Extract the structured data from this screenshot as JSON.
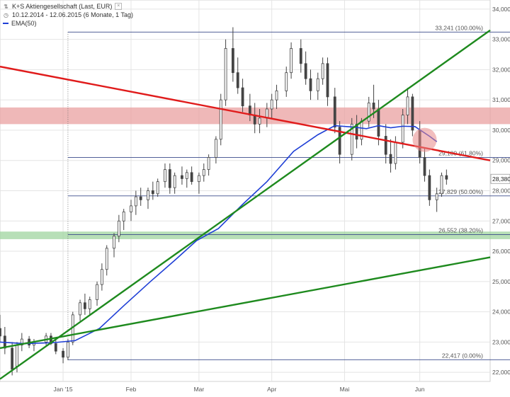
{
  "header": {
    "title": "K+S Aktiengesellschaft (Last, EUR)",
    "range": "10.12.2014 - 12.06.2015 (6 Monate, 1 Tag)",
    "indicator": "EMA(50)"
  },
  "colors": {
    "candle": "#444444",
    "ema": "#1f3fd6",
    "red_trend": "#e01b1b",
    "green_trend": "#1e8a1e",
    "resistance_zone": "#e9a0a0",
    "support_zone": "#9fd49f",
    "fib_line": "#3a4a8a",
    "grid": "#e4e4e4",
    "highlight_circle": "#e88888"
  },
  "chart_data": {
    "type": "candlestick",
    "ylim": [
      21700,
      34300
    ],
    "y_ticks": [
      "22,000",
      "23,000",
      "24,000",
      "25,000",
      "26,000",
      "27,000",
      "28,000",
      "29,000",
      "30,000",
      "31,000",
      "32,000",
      "33,000",
      "34,000"
    ],
    "y_tick_values": [
      22000,
      23000,
      24000,
      25000,
      26000,
      27000,
      28000,
      29000,
      30000,
      31000,
      32000,
      33000,
      34000
    ],
    "x_ticks": [
      {
        "label": "Jan '15",
        "date": "2015-01-05"
      },
      {
        "label": "Feb",
        "date": "2015-02-02"
      },
      {
        "label": "Mar",
        "date": "2015-03-02"
      },
      {
        "label": "Apr",
        "date": "2015-04-01"
      },
      {
        "label": "Mai",
        "date": "2015-05-01"
      },
      {
        "label": "Jun",
        "date": "2015-06-01"
      }
    ],
    "x_range": [
      "2014-12-10",
      "2015-06-30"
    ],
    "last_price_label": "28,380",
    "fib_levels": [
      {
        "label": "33,241 (100.00%)",
        "value": 33241
      },
      {
        "label": "29,100 (61.80%)",
        "value": 29100
      },
      {
        "label": "27,829 (50.00%)",
        "value": 27829
      },
      {
        "label": "26,552 (38.20%)",
        "value": 26552
      },
      {
        "label": "22,417 (0.00%)",
        "value": 22417
      }
    ],
    "fib_start_date": "2015-01-07",
    "zones": [
      {
        "name": "resistance",
        "low": 30200,
        "high": 30750
      },
      {
        "name": "support",
        "low": 26400,
        "high": 26650
      }
    ],
    "trendlines": [
      {
        "name": "red-downtrend",
        "color": "red",
        "points": [
          [
            "2014-12-10",
            32100
          ],
          [
            "2015-06-30",
            29000
          ]
        ]
      },
      {
        "name": "green-steep",
        "color": "green",
        "points": [
          [
            "2014-12-10",
            21780
          ],
          [
            "2015-06-30",
            33300
          ]
        ]
      },
      {
        "name": "green-shallow",
        "color": "green",
        "points": [
          [
            "2014-12-10",
            22800
          ],
          [
            "2015-06-30",
            25800
          ]
        ]
      }
    ],
    "highlight": {
      "date": "2015-06-03",
      "value": 29680
    },
    "ema": [
      [
        "2014-12-10",
        23000
      ],
      [
        "2014-12-20",
        22950
      ],
      [
        "2015-01-01",
        22980
      ],
      [
        "2015-01-10",
        23050
      ],
      [
        "2015-01-20",
        23450
      ],
      [
        "2015-01-30",
        24200
      ],
      [
        "2015-02-10",
        25000
      ],
      [
        "2015-02-20",
        25700
      ],
      [
        "2015-03-01",
        26350
      ],
      [
        "2015-03-10",
        26750
      ],
      [
        "2015-03-20",
        27550
      ],
      [
        "2015-03-30",
        28300
      ],
      [
        "2015-04-10",
        29300
      ],
      [
        "2015-04-20",
        29850
      ],
      [
        "2015-04-27",
        30150
      ],
      [
        "2015-05-05",
        30100
      ],
      [
        "2015-05-10",
        30050
      ],
      [
        "2015-05-15",
        30150
      ],
      [
        "2015-05-20",
        30080
      ],
      [
        "2015-05-25",
        30130
      ],
      [
        "2015-05-30",
        30120
      ],
      [
        "2015-06-05",
        29800
      ],
      [
        "2015-06-08",
        29620
      ]
    ],
    "candles": [
      [
        "2014-12-10",
        23450,
        23900,
        23000,
        23200
      ],
      [
        "2014-12-12",
        23200,
        23500,
        22600,
        22800
      ],
      [
        "2014-12-15",
        22800,
        23000,
        21900,
        22100
      ],
      [
        "2014-12-17",
        22200,
        23000,
        22000,
        22900
      ],
      [
        "2014-12-19",
        22900,
        23300,
        22700,
        23100
      ],
      [
        "2014-12-22",
        23100,
        23200,
        22800,
        22900
      ],
      [
        "2014-12-24",
        22900,
        23100,
        22700,
        23000
      ],
      [
        "2014-12-29",
        23000,
        23300,
        22900,
        23200
      ],
      [
        "2014-12-31",
        23200,
        23300,
        22900,
        22950
      ],
      [
        "2015-01-02",
        22950,
        23100,
        22600,
        22700
      ],
      [
        "2015-01-05",
        22700,
        22800,
        22300,
        22500
      ],
      [
        "2015-01-07",
        22500,
        23100,
        22400,
        23000
      ],
      [
        "2015-01-09",
        23000,
        24000,
        22900,
        23900
      ],
      [
        "2015-01-12",
        23900,
        24400,
        23700,
        24300
      ],
      [
        "2015-01-14",
        24300,
        24600,
        23900,
        24100
      ],
      [
        "2015-01-16",
        24100,
        24500,
        23900,
        24400
      ],
      [
        "2015-01-19",
        24400,
        25000,
        24200,
        24900
      ],
      [
        "2015-01-21",
        24900,
        25600,
        24700,
        25400
      ],
      [
        "2015-01-23",
        25400,
        26200,
        25200,
        26100
      ],
      [
        "2015-01-26",
        26100,
        26600,
        25800,
        26500
      ],
      [
        "2015-01-28",
        26500,
        27200,
        26300,
        27000
      ],
      [
        "2015-01-30",
        27000,
        27400,
        26700,
        27300
      ],
      [
        "2015-02-02",
        27300,
        27700,
        27000,
        27500
      ],
      [
        "2015-02-04",
        27500,
        28000,
        27200,
        27800
      ],
      [
        "2015-02-06",
        27800,
        28100,
        27500,
        27700
      ],
      [
        "2015-02-09",
        27700,
        28100,
        27400,
        28000
      ],
      [
        "2015-02-11",
        28000,
        28300,
        27700,
        27900
      ],
      [
        "2015-02-13",
        27900,
        28400,
        27800,
        28300
      ],
      [
        "2015-02-16",
        28300,
        28900,
        28100,
        28700
      ],
      [
        "2015-02-18",
        28700,
        28900,
        27900,
        28100
      ],
      [
        "2015-02-20",
        28100,
        28600,
        27900,
        28500
      ],
      [
        "2015-02-23",
        28500,
        28800,
        28200,
        28400
      ],
      [
        "2015-02-25",
        28400,
        28700,
        28100,
        28600
      ],
      [
        "2015-02-27",
        28600,
        28800,
        28200,
        28300
      ],
      [
        "2015-03-02",
        28300,
        28600,
        27900,
        28500
      ],
      [
        "2015-03-04",
        28500,
        28900,
        28300,
        28700
      ],
      [
        "2015-03-06",
        28700,
        29200,
        28500,
        29100
      ],
      [
        "2015-03-09",
        29100,
        29800,
        28900,
        29700
      ],
      [
        "2015-03-11",
        29700,
        31200,
        29500,
        31000
      ],
      [
        "2015-03-13",
        31000,
        33000,
        30800,
        32700
      ],
      [
        "2015-03-16",
        32700,
        33400,
        31600,
        31900
      ],
      [
        "2015-03-18",
        31900,
        32400,
        31200,
        31400
      ],
      [
        "2015-03-20",
        31400,
        31700,
        30600,
        30800
      ],
      [
        "2015-03-23",
        30800,
        31200,
        30300,
        30500
      ],
      [
        "2015-03-25",
        30500,
        30900,
        29900,
        30200
      ],
      [
        "2015-03-27",
        30200,
        30700,
        29900,
        30400
      ],
      [
        "2015-03-30",
        30400,
        30900,
        30100,
        30700
      ],
      [
        "2015-04-01",
        30700,
        31200,
        30400,
        31000
      ],
      [
        "2015-04-03",
        31000,
        31500,
        30700,
        31300
      ],
      [
        "2015-04-07",
        31300,
        32100,
        31100,
        31900
      ],
      [
        "2015-04-09",
        31900,
        32900,
        31700,
        32700
      ],
      [
        "2015-04-13",
        32700,
        33000,
        31900,
        32200
      ],
      [
        "2015-04-15",
        32200,
        32600,
        31500,
        31700
      ],
      [
        "2015-04-17",
        31700,
        32000,
        31000,
        31300
      ],
      [
        "2015-04-20",
        31300,
        31900,
        31000,
        31700
      ],
      [
        "2015-04-22",
        31700,
        32400,
        31500,
        32200
      ],
      [
        "2015-04-24",
        32200,
        32400,
        30800,
        31100
      ],
      [
        "2015-04-27",
        31100,
        31400,
        29900,
        30100
      ],
      [
        "2015-04-29",
        30100,
        30300,
        28900,
        29200
      ],
      [
        "2015-05-04",
        29200,
        30400,
        29000,
        30200
      ],
      [
        "2015-05-06",
        30200,
        30500,
        29400,
        29700
      ],
      [
        "2015-05-08",
        29700,
        30400,
        29500,
        30300
      ],
      [
        "2015-05-11",
        30300,
        31100,
        30100,
        30900
      ],
      [
        "2015-05-13",
        30900,
        31500,
        30400,
        30700
      ],
      [
        "2015-05-15",
        30700,
        31000,
        29500,
        29800
      ],
      [
        "2015-05-18",
        29800,
        30200,
        28900,
        29200
      ],
      [
        "2015-05-20",
        29200,
        29700,
        28600,
        28900
      ],
      [
        "2015-05-22",
        28900,
        29800,
        28700,
        29600
      ],
      [
        "2015-05-25",
        29600,
        30700,
        29400,
        30500
      ],
      [
        "2015-05-27",
        30500,
        31400,
        30200,
        31100
      ],
      [
        "2015-05-29",
        31100,
        31200,
        29800,
        30000
      ],
      [
        "2015-06-01",
        30000,
        30300,
        28900,
        29100
      ],
      [
        "2015-06-03",
        29100,
        29400,
        28300,
        28500
      ],
      [
        "2015-06-05",
        28500,
        28700,
        27500,
        27700
      ],
      [
        "2015-06-08",
        27700,
        28100,
        27300,
        27900
      ],
      [
        "2015-06-10",
        27900,
        28600,
        27800,
        28500
      ],
      [
        "2015-06-12",
        28500,
        28700,
        28200,
        28380
      ]
    ]
  }
}
